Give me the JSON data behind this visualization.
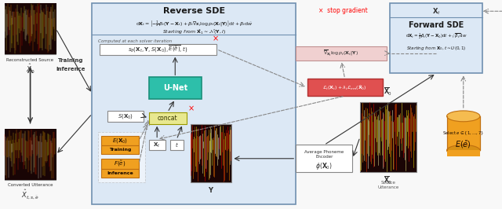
{
  "title": "Reverse SDE",
  "forward_sde_title": "Forward SDE",
  "reverse_sde_eq": "dX_t = [-\\u00bd\\u03b2_t(Y - X_t) + \\u03b2_t\\u2207_{X_t} log p_t(X_t|Y)] dt + \\u03b2_t d\\u0175",
  "reverse_sde_start": "Starting from \\u02c6X_1 \\u223c N(Y, I)",
  "forward_sde_eq": "dX_t = \\u00bd\\u03b2_t(Y - X_0)dt + \\u221a\\u03b2_t dw",
  "forward_sde_start": "Starting from X_0, t \\u223c U(0, 1)",
  "stop_gradient_label": "\\u00d7  stop gradient",
  "computed_label": "Computed at each solver iteration",
  "bg_color": "#f0f4f8",
  "reverse_box_color": "#dce8f5",
  "forward_box_color": "#dce8f5",
  "unet_color": "#2dbfaa",
  "concat_color": "#e8e8a0",
  "loss_color": "#e05050",
  "score_color": "#e8c0c0",
  "encoder_box_color": "#ffffff",
  "training_color": "#f0a020",
  "inference_color": "#f0a020",
  "arrow_color": "#333333",
  "dashed_color": "#888888"
}
